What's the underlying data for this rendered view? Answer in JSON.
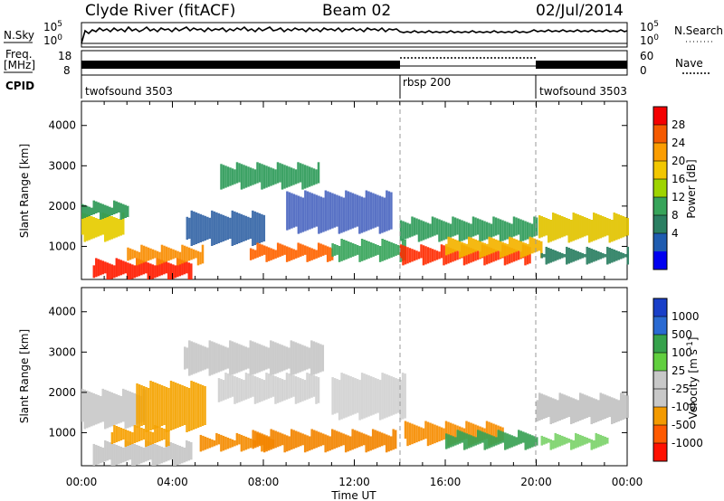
{
  "header": {
    "station": "Clyde River (fitACF)",
    "beam": "Beam 02",
    "date": "02/Jul/2014"
  },
  "panels": {
    "nsky_label": "N.Sky",
    "nsearch_label": "N.Search",
    "freq_label": "Freq.",
    "freq_unit": "[MHz]",
    "nave_label": "Nave",
    "cpid_label": "CPID",
    "nsky_ticks": [
      "10^5",
      "10^0"
    ],
    "nsearch_ticks": [
      "10^5",
      "10^0"
    ],
    "freq_ticks": [
      "18",
      "8"
    ],
    "nave_ticks": [
      "60",
      "0"
    ],
    "cpid_segments": [
      {
        "label": "twofsound 3503",
        "start": 0,
        "end": 14
      },
      {
        "label": "rbsp 200",
        "start": 14,
        "end": 20
      },
      {
        "label": "twofsound 3503",
        "start": 20,
        "end": 24
      }
    ]
  },
  "chart_data": [
    {
      "type": "heatmap",
      "name": "power",
      "ylabel": "Slant Range [km]",
      "ylim": [
        180,
        4600
      ],
      "xlim": [
        0,
        24
      ],
      "yticks": [
        1000,
        2000,
        3000,
        4000
      ],
      "colorbar": {
        "label": "Power [dB]",
        "ticks": [
          "28",
          "24",
          "20",
          "16",
          "12",
          "8",
          "4"
        ],
        "colors": [
          "#f40000",
          "#f55a00",
          "#fb9d00",
          "#f2c700",
          "#9ed400",
          "#37a45a",
          "#2b7f62",
          "#1f5cb0",
          "#0000f0"
        ]
      },
      "bands": [
        {
          "t0": 0.0,
          "t1": 1.8,
          "r0": 1200,
          "r1": 1750,
          "color": "#e7cd00"
        },
        {
          "t0": 0.0,
          "t1": 2.0,
          "r0": 1750,
          "r1": 2050,
          "color": "#2f9a57"
        },
        {
          "t0": 0.5,
          "t1": 4.8,
          "r0": 240,
          "r1": 620,
          "color": "#ff1c00"
        },
        {
          "t0": 2.0,
          "t1": 5.3,
          "r0": 620,
          "r1": 950,
          "color": "#f98d00"
        },
        {
          "t0": 4.6,
          "t1": 8.0,
          "r0": 1100,
          "r1": 1800,
          "color": "#3566a7"
        },
        {
          "t0": 6.1,
          "t1": 10.4,
          "r0": 2500,
          "r1": 3000,
          "color": "#2d9b59"
        },
        {
          "t0": 7.4,
          "t1": 11.0,
          "r0": 700,
          "r1": 1000,
          "color": "#ff6300"
        },
        {
          "t0": 9.0,
          "t1": 13.6,
          "r0": 1400,
          "r1": 2300,
          "color": "#4b67c1"
        },
        {
          "t0": 11.0,
          "t1": 14.2,
          "r0": 700,
          "r1": 1100,
          "color": "#37a45a"
        },
        {
          "t0": 14.0,
          "t1": 19.7,
          "r0": 620,
          "r1": 960,
          "color": "#ff2b00"
        },
        {
          "t0": 14.0,
          "t1": 20.0,
          "r0": 1200,
          "r1": 1650,
          "color": "#2d9b59"
        },
        {
          "t0": 16.0,
          "t1": 20.2,
          "r0": 800,
          "r1": 1150,
          "color": "#f5b400"
        },
        {
          "t0": 20.1,
          "t1": 24.0,
          "r0": 1180,
          "r1": 1750,
          "color": "#e2c400"
        },
        {
          "t0": 20.2,
          "t1": 24.0,
          "r0": 640,
          "r1": 900,
          "color": "#2b7f62"
        }
      ]
    },
    {
      "type": "heatmap",
      "name": "velocity",
      "ylabel": "Slant Range [km]",
      "ylim": [
        180,
        4600
      ],
      "xlim": [
        0,
        24
      ],
      "yticks": [
        1000,
        2000,
        3000,
        4000
      ],
      "xticks": [
        "00:00",
        "04:00",
        "08:00",
        "12:00",
        "16:00",
        "20:00",
        "00:00"
      ],
      "xlabel": "Time UT",
      "colorbar": {
        "label": "Velocity [m s^-1]",
        "ticks": [
          "1000",
          "500",
          "100",
          "25",
          "-25",
          "-100",
          "-500",
          "-1000"
        ],
        "colors": [
          "#193fc8",
          "#2a6ad2",
          "#36a24c",
          "#61cf3f",
          "#c8c8c8",
          "#c8c8c8",
          "#f39a00",
          "#ff5a00",
          "#ff1100"
        ]
      },
      "bands": [
        {
          "t0": 0.0,
          "t1": 2.8,
          "r0": 1180,
          "r1": 2000,
          "color": "#c9c9c9"
        },
        {
          "t0": 0.5,
          "t1": 4.8,
          "r0": 240,
          "r1": 720,
          "color": "#c6c6c6"
        },
        {
          "t0": 1.3,
          "t1": 3.8,
          "r0": 740,
          "r1": 1100,
          "color": "#f7a000"
        },
        {
          "t0": 2.4,
          "t1": 5.4,
          "r0": 1100,
          "r1": 2200,
          "color": "#f5a300"
        },
        {
          "t0": 4.5,
          "t1": 10.6,
          "r0": 2500,
          "r1": 3200,
          "color": "#c7c7c7"
        },
        {
          "t0": 5.2,
          "t1": 8.4,
          "r0": 620,
          "r1": 900,
          "color": "#f58b00"
        },
        {
          "t0": 6.0,
          "t1": 10.4,
          "r0": 1800,
          "r1": 2400,
          "color": "#d0d0d0"
        },
        {
          "t0": 7.5,
          "t1": 13.8,
          "r0": 600,
          "r1": 1000,
          "color": "#f38500"
        },
        {
          "t0": 11.0,
          "t1": 14.2,
          "r0": 1400,
          "r1": 2400,
          "color": "#d2d2d2"
        },
        {
          "t0": 14.2,
          "t1": 18.5,
          "r0": 760,
          "r1": 1200,
          "color": "#f78d00"
        },
        {
          "t0": 16.0,
          "t1": 20.0,
          "r0": 660,
          "r1": 980,
          "color": "#3aa255"
        },
        {
          "t0": 20.0,
          "t1": 24.0,
          "r0": 1300,
          "r1": 1900,
          "color": "#c3c3c3"
        },
        {
          "t0": 20.2,
          "t1": 23.1,
          "r0": 660,
          "r1": 900,
          "color": "#7cd36b"
        }
      ]
    }
  ]
}
